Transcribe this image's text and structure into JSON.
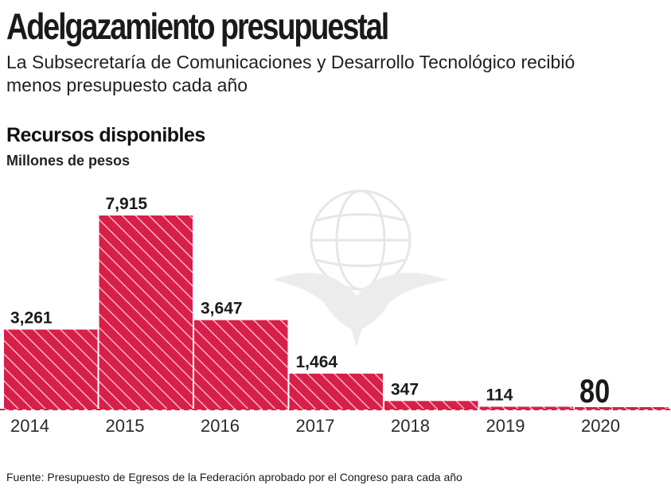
{
  "header": {
    "title": "Adelgazamiento presupuestal",
    "subtitle": "La Subsecretaría de Comunicaciones y Desarrollo Tecnológico recibió menos presupuesto cada año",
    "section_title": "Recursos disponibles",
    "unit": "Millones de pesos"
  },
  "source": "Fuente: Presupuesto de Egresos de la Federación aprobado por el Congreso para cada año",
  "colors": {
    "bar": "#d81f49",
    "stripe": "#f4b7c3",
    "text": "#1a1a1a"
  },
  "chart_data": {
    "type": "bar",
    "categories": [
      "2014",
      "2015",
      "2016",
      "2017",
      "2018",
      "2019",
      "2020"
    ],
    "values": [
      3261,
      7915,
      3647,
      1464,
      347,
      114,
      80
    ],
    "value_labels": [
      "3,261",
      "7,915",
      "3,647",
      "1,464",
      "347",
      "114",
      "80"
    ],
    "title": "Recursos disponibles",
    "ylabel": "Millones de pesos",
    "xlabel": "",
    "ylim": [
      0,
      7915
    ],
    "grid": false,
    "legend": "none"
  }
}
